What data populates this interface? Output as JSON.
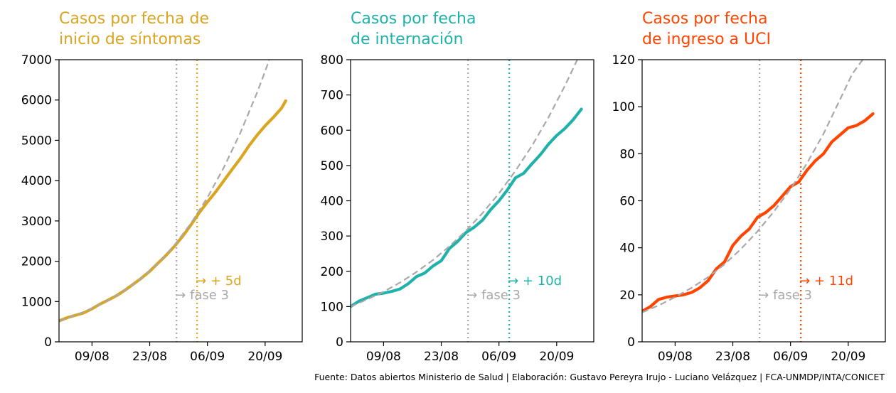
{
  "source_note": "Fuente: Datos abiertos Ministerio de Salud | Elaboración: Gustavo Pereyra Irujo - Luciano Velázquez | FCA-UNMDP/INTA/CONICET",
  "chart_data": [
    {
      "type": "line",
      "title_lines": [
        "Casos por fecha de",
        "inicio de síntomas"
      ],
      "color": "#DAA520",
      "x_ticks": [
        {
          "day": 9,
          "label": "09/08"
        },
        {
          "day": 23,
          "label": "23/08"
        },
        {
          "day": 37,
          "label": "06/09"
        },
        {
          "day": 51,
          "label": "20/09"
        }
      ],
      "xlim": [
        1,
        60
      ],
      "ylim": [
        0,
        7000
      ],
      "y_ticks": [
        0,
        1000,
        2000,
        3000,
        4000,
        5000,
        6000,
        7000
      ],
      "fase3_day": 29.5,
      "fase3_label": "→ fase 3",
      "shift_day": 34.5,
      "shift_label": "→ + 5d",
      "series": [
        {
          "role": "observed",
          "x": [
            1,
            3,
            5,
            7,
            9,
            11,
            13,
            15,
            17,
            19,
            21,
            23,
            25,
            27,
            29,
            31,
            33,
            35,
            37,
            39,
            41,
            43,
            45,
            47,
            49,
            51,
            53,
            55,
            56
          ],
          "y": [
            520,
            600,
            660,
            720,
            820,
            940,
            1040,
            1150,
            1280,
            1430,
            1580,
            1750,
            1950,
            2150,
            2370,
            2620,
            2900,
            3200,
            3470,
            3720,
            4000,
            4280,
            4550,
            4850,
            5120,
            5360,
            5570,
            5800,
            5980
          ]
        },
        {
          "role": "fit",
          "x": [
            1,
            5,
            9,
            13,
            17,
            21,
            25,
            29,
            33,
            37,
            41,
            45,
            49,
            51,
            52.5
          ],
          "y": [
            520,
            660,
            830,
            1030,
            1280,
            1580,
            1950,
            2400,
            2940,
            3580,
            4330,
            5190,
            6170,
            6710,
            7150
          ]
        }
      ]
    },
    {
      "type": "line",
      "title_lines": [
        "Casos por fecha",
        "de internación"
      ],
      "color": "#20B2AA",
      "x_ticks": [
        {
          "day": 9,
          "label": "09/08"
        },
        {
          "day": 23,
          "label": "23/08"
        },
        {
          "day": 37,
          "label": "06/09"
        },
        {
          "day": 51,
          "label": "20/09"
        }
      ],
      "xlim": [
        1,
        60
      ],
      "ylim": [
        0,
        800
      ],
      "y_ticks": [
        0,
        100,
        200,
        300,
        400,
        500,
        600,
        700,
        800
      ],
      "fase3_day": 29.5,
      "fase3_label": "→ fase 3",
      "shift_day": 39.5,
      "shift_label": "→ + 10d",
      "series": [
        {
          "role": "observed",
          "x": [
            1,
            3,
            5,
            7,
            9,
            11,
            13,
            15,
            17,
            19,
            21,
            23,
            25,
            27,
            29,
            31,
            33,
            35,
            37,
            39,
            41,
            43,
            45,
            47,
            49,
            51,
            53,
            55,
            57
          ],
          "y": [
            100,
            115,
            125,
            135,
            138,
            143,
            150,
            165,
            185,
            195,
            215,
            230,
            265,
            285,
            310,
            325,
            345,
            375,
            400,
            430,
            465,
            478,
            505,
            530,
            560,
            585,
            605,
            630,
            660
          ]
        },
        {
          "role": "fit",
          "x": [
            1,
            5,
            9,
            13,
            17,
            21,
            25,
            29,
            33,
            37,
            41,
            45,
            49,
            53,
            56
          ],
          "y": [
            100,
            120,
            142,
            168,
            198,
            232,
            271,
            315,
            365,
            421,
            485,
            556,
            636,
            726,
            800
          ]
        }
      ]
    },
    {
      "type": "line",
      "title_lines": [
        "Casos por fecha",
        "de ingreso a UCI"
      ],
      "color": "#FF4500",
      "x_ticks": [
        {
          "day": 9,
          "label": "09/08"
        },
        {
          "day": 23,
          "label": "23/08"
        },
        {
          "day": 37,
          "label": "06/09"
        },
        {
          "day": 51,
          "label": "20/09"
        }
      ],
      "xlim": [
        1,
        60
      ],
      "ylim": [
        0,
        120
      ],
      "y_ticks": [
        0,
        20,
        40,
        60,
        80,
        100,
        120
      ],
      "fase3_day": 29.5,
      "fase3_label": "→ fase 3",
      "shift_day": 39.5,
      "shift_label": "→ + 11d",
      "series": [
        {
          "role": "observed",
          "x": [
            1,
            3,
            5,
            7,
            9,
            11,
            13,
            15,
            17,
            19,
            21,
            23,
            25,
            27,
            29,
            31,
            33,
            35,
            37,
            39,
            41,
            43,
            45,
            47,
            49,
            51,
            53,
            55,
            57
          ],
          "y": [
            13,
            15,
            18,
            19,
            19.5,
            20,
            21,
            23,
            26,
            31,
            34,
            41,
            45,
            48,
            53,
            55,
            58,
            62,
            66,
            68,
            73,
            77,
            80,
            85,
            88,
            91,
            92,
            94,
            97
          ]
        },
        {
          "role": "fit",
          "x": [
            1,
            5,
            9,
            13,
            17,
            21,
            25,
            29,
            33,
            37,
            41,
            45,
            49,
            52,
            54.5
          ],
          "y": [
            12.5,
            15.5,
            19,
            23,
            27.5,
            33,
            39.5,
            47,
            55.5,
            65,
            76,
            88.5,
            103,
            114,
            120
          ]
        }
      ]
    }
  ]
}
